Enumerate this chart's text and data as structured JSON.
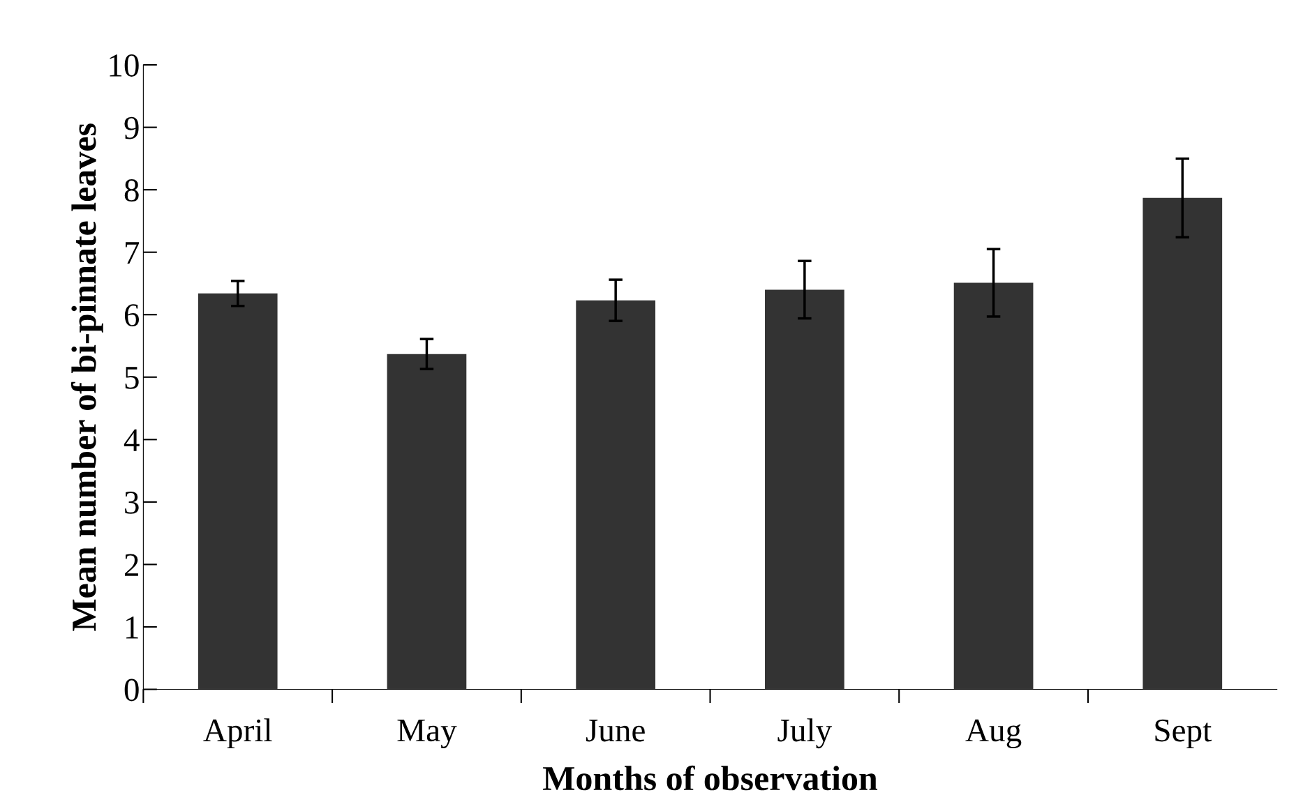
{
  "chart_data": {
    "type": "bar",
    "xlabel": "Months of observation",
    "ylabel": "Mean number of bi-pinnate leaves",
    "categories": [
      "April",
      "May",
      "June",
      "July",
      "Aug",
      "Sept"
    ],
    "values": [
      6.34,
      5.37,
      6.23,
      6.4,
      6.51,
      7.87
    ],
    "errors": [
      0.2,
      0.24,
      0.33,
      0.46,
      0.54,
      0.63
    ],
    "color": "#333333",
    "ylim": [
      0,
      10
    ],
    "yticks": [
      0,
      1,
      2,
      3,
      4,
      5,
      6,
      7,
      8,
      9,
      10
    ],
    "grid": false
  }
}
